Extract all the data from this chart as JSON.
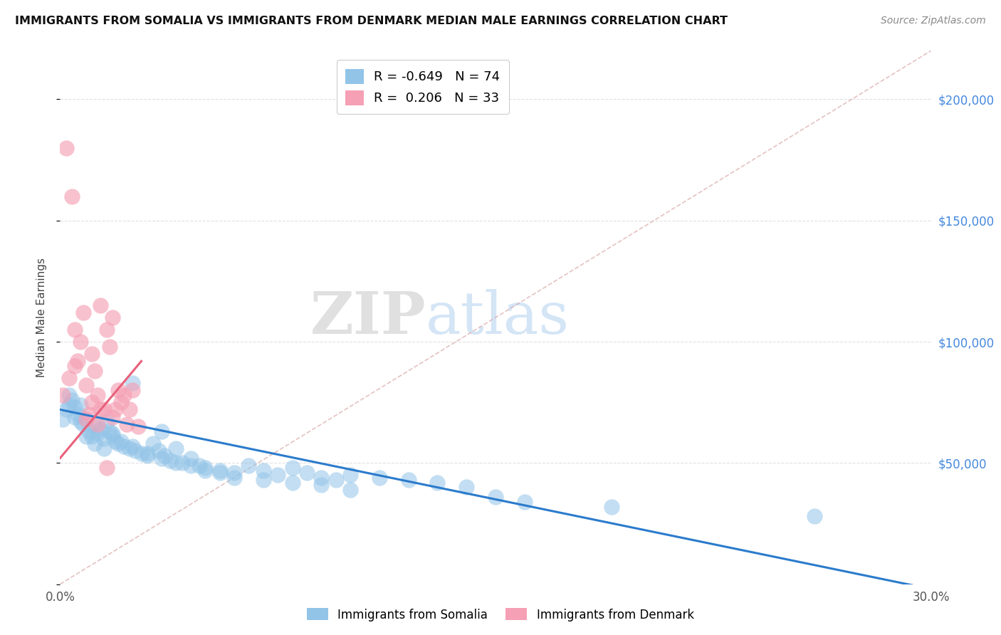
{
  "title": "IMMIGRANTS FROM SOMALIA VS IMMIGRANTS FROM DENMARK MEDIAN MALE EARNINGS CORRELATION CHART",
  "source": "Source: ZipAtlas.com",
  "ylabel": "Median Male Earnings",
  "watermark_zip": "ZIP",
  "watermark_atlas": "atlas",
  "xlim": [
    0.0,
    0.3
  ],
  "ylim": [
    0,
    220000
  ],
  "somalia_color": "#92c4e8",
  "denmark_color": "#f5a0b5",
  "somalia_line_color": "#2b7bcc",
  "denmark_line_color": "#e8607a",
  "diag_line_color": "#d9a8a8",
  "somalia_R": -0.649,
  "somalia_N": 74,
  "denmark_R": 0.206,
  "denmark_N": 33,
  "legend_label_somalia": "Immigrants from Somalia",
  "legend_label_denmark": "Immigrants from Denmark",
  "background_color": "#ffffff",
  "grid_color": "#e0e0e0",
  "somalia_x": [
    0.001,
    0.002,
    0.003,
    0.004,
    0.005,
    0.006,
    0.007,
    0.008,
    0.009,
    0.01,
    0.011,
    0.012,
    0.013,
    0.014,
    0.015,
    0.016,
    0.017,
    0.018,
    0.019,
    0.02,
    0.022,
    0.024,
    0.026,
    0.028,
    0.03,
    0.032,
    0.034,
    0.036,
    0.038,
    0.04,
    0.042,
    0.045,
    0.048,
    0.05,
    0.055,
    0.06,
    0.065,
    0.07,
    0.075,
    0.08,
    0.085,
    0.09,
    0.095,
    0.1,
    0.11,
    0.12,
    0.13,
    0.14,
    0.15,
    0.16,
    0.003,
    0.005,
    0.007,
    0.009,
    0.012,
    0.015,
    0.018,
    0.021,
    0.025,
    0.03,
    0.035,
    0.04,
    0.045,
    0.05,
    0.055,
    0.06,
    0.07,
    0.08,
    0.09,
    0.1,
    0.19,
    0.26,
    0.025,
    0.035
  ],
  "somalia_y": [
    68000,
    72000,
    74000,
    76000,
    73000,
    70000,
    74000,
    66000,
    68000,
    63000,
    61000,
    65000,
    62000,
    64000,
    60000,
    67000,
    63000,
    61000,
    59000,
    58000,
    57000,
    56000,
    55000,
    54000,
    53000,
    58000,
    55000,
    53000,
    51000,
    56000,
    50000,
    52000,
    49000,
    48000,
    47000,
    46000,
    49000,
    47000,
    45000,
    48000,
    46000,
    44000,
    43000,
    45000,
    44000,
    43000,
    42000,
    40000,
    36000,
    34000,
    78000,
    69000,
    67000,
    61000,
    58000,
    56000,
    62000,
    59000,
    57000,
    54000,
    52000,
    50000,
    49000,
    47000,
    46000,
    44000,
    43000,
    42000,
    41000,
    39000,
    32000,
    28000,
    83000,
    63000
  ],
  "denmark_x": [
    0.001,
    0.002,
    0.004,
    0.005,
    0.006,
    0.008,
    0.009,
    0.01,
    0.011,
    0.012,
    0.013,
    0.014,
    0.015,
    0.016,
    0.017,
    0.018,
    0.019,
    0.02,
    0.021,
    0.022,
    0.024,
    0.025,
    0.027,
    0.003,
    0.005,
    0.007,
    0.009,
    0.011,
    0.014,
    0.018,
    0.023,
    0.013,
    0.016
  ],
  "denmark_y": [
    78000,
    180000,
    160000,
    105000,
    92000,
    112000,
    68000,
    70000,
    95000,
    88000,
    78000,
    115000,
    72000,
    105000,
    98000,
    110000,
    72000,
    80000,
    75000,
    78000,
    72000,
    80000,
    65000,
    85000,
    90000,
    100000,
    82000,
    75000,
    72000,
    69000,
    66000,
    66000,
    48000
  ],
  "somalia_line_x0": 0.0,
  "somalia_line_x1": 0.3,
  "somalia_line_y0": 72000,
  "somalia_line_y1": -2000,
  "denmark_line_x0": 0.0,
  "denmark_line_x1": 0.028,
  "denmark_line_y0": 52000,
  "denmark_line_y1": 92000
}
